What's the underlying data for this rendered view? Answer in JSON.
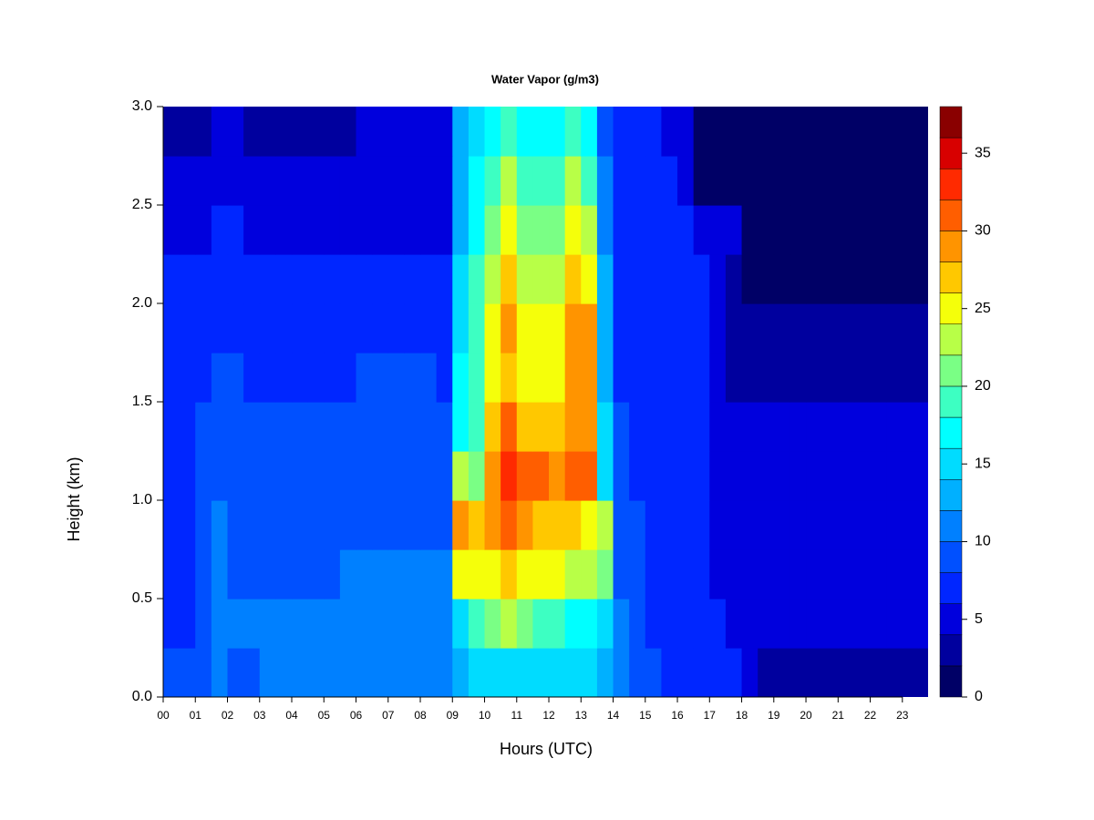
{
  "chart_data": {
    "type": "heatmap",
    "title": "Water Vapor (g/m3)",
    "x_label": "Hours (UTC)",
    "y_label": "Height (km)",
    "x": [
      0.25,
      0.75,
      1.25,
      1.75,
      2.25,
      2.75,
      3.25,
      3.75,
      4.25,
      4.75,
      5.25,
      5.75,
      6.25,
      6.75,
      7.25,
      7.75,
      8.25,
      8.75,
      9.25,
      9.75,
      10.25,
      10.75,
      11.25,
      11.75,
      12.25,
      12.75,
      13.25,
      13.75,
      14.25,
      14.75,
      15.25,
      15.75,
      16.25,
      16.75,
      17.25,
      17.75,
      18.25,
      18.75,
      19.25,
      19.75,
      20.25,
      20.75,
      21.25,
      21.75,
      22.25,
      22.75,
      23.25,
      23.75
    ],
    "y": [
      0.125,
      0.375,
      0.625,
      0.875,
      1.125,
      1.375,
      1.625,
      1.875,
      2.125,
      2.375,
      2.625,
      2.875
    ],
    "z": [
      [
        8,
        8,
        9,
        10,
        9,
        9,
        10,
        10,
        10,
        10,
        10,
        10,
        10,
        10,
        10,
        10,
        10,
        10,
        12,
        14,
        15,
        15,
        15,
        14,
        14,
        14,
        14,
        12,
        10,
        9,
        8,
        7,
        6,
        6,
        6,
        6,
        5,
        3,
        3,
        3,
        3,
        3,
        3,
        3,
        3,
        3,
        3,
        3
      ],
      [
        7,
        7,
        8,
        10,
        10,
        10,
        11,
        11,
        11,
        11,
        11,
        11,
        11,
        11,
        11,
        11,
        11,
        11,
        14,
        18,
        20,
        22,
        20,
        18,
        18,
        16,
        16,
        14,
        10,
        9,
        7,
        7,
        6,
        6,
        7,
        5,
        5,
        5,
        5,
        5,
        5,
        5,
        5,
        5,
        5,
        5,
        5,
        5
      ],
      [
        7,
        7,
        8,
        10,
        9,
        9,
        9,
        9,
        9,
        9,
        9,
        10,
        10,
        10,
        10,
        10,
        10,
        10,
        24,
        24,
        25,
        27,
        25,
        24,
        24,
        23,
        22,
        20,
        9,
        8,
        7,
        7,
        6,
        6,
        5,
        5,
        5,
        5,
        5,
        5,
        5,
        5,
        5,
        5,
        5,
        5,
        5,
        5
      ],
      [
        7,
        7,
        8,
        11,
        9,
        8,
        8,
        8,
        9,
        9,
        9,
        9,
        9,
        9,
        9,
        9,
        9,
        8,
        28,
        26,
        28,
        30,
        28,
        27,
        27,
        26,
        25,
        22,
        8,
        8,
        7,
        7,
        6,
        6,
        5,
        5,
        5,
        5,
        5,
        5,
        5,
        5,
        5,
        5,
        5,
        5,
        5,
        5
      ],
      [
        7,
        7,
        8,
        9,
        8,
        8,
        8,
        8,
        8,
        8,
        8,
        8,
        8,
        8,
        8,
        8,
        8,
        8,
        22,
        20,
        28,
        32,
        30,
        30,
        28,
        30,
        30,
        14,
        8,
        7,
        7,
        7,
        6,
        6,
        5,
        5,
        5,
        5,
        5,
        5,
        5,
        5,
        5,
        5,
        5,
        5,
        5,
        5
      ],
      [
        7,
        7,
        8,
        8,
        8,
        8,
        8,
        8,
        8,
        8,
        8,
        8,
        8,
        8,
        8,
        8,
        8,
        8,
        16,
        18,
        26,
        30,
        27,
        26,
        26,
        28,
        28,
        14,
        8,
        7,
        7,
        6,
        6,
        6,
        5,
        5,
        5,
        5,
        5,
        5,
        5,
        5,
        5,
        5,
        5,
        5,
        5,
        5
      ],
      [
        7,
        7,
        7,
        8,
        8,
        7,
        7,
        7,
        7,
        7,
        7,
        7,
        8,
        8,
        8,
        8,
        8,
        7,
        16,
        18,
        24,
        27,
        25,
        24,
        24,
        28,
        28,
        12,
        7,
        7,
        7,
        6,
        6,
        6,
        5,
        3,
        3,
        3,
        3,
        3,
        3,
        3,
        3,
        3,
        3,
        3,
        3,
        3
      ],
      [
        6,
        6,
        6,
        7,
        7,
        6,
        6,
        6,
        6,
        6,
        6,
        6,
        7,
        7,
        6,
        6,
        6,
        6,
        14,
        18,
        24,
        28,
        24,
        24,
        24,
        29,
        28,
        12,
        7,
        7,
        6,
        6,
        6,
        6,
        5,
        3,
        3,
        3,
        3,
        3,
        3,
        3,
        3,
        3,
        3,
        3,
        3,
        3
      ],
      [
        6,
        6,
        6,
        6,
        7,
        6,
        6,
        6,
        6,
        6,
        6,
        6,
        6,
        6,
        6,
        6,
        6,
        6,
        14,
        18,
        22,
        27,
        22,
        22,
        22,
        26,
        24,
        12,
        7,
        7,
        6,
        6,
        6,
        6,
        5,
        3,
        1.5,
        1.5,
        1.5,
        1.5,
        1.5,
        1.5,
        1.5,
        1.5,
        1.5,
        1.5,
        1.5,
        1.5
      ],
      [
        5,
        5,
        5,
        6,
        6,
        5,
        5,
        5,
        5,
        5,
        5,
        5,
        5,
        5,
        5,
        5,
        5,
        5,
        12,
        16,
        20,
        24,
        20,
        20,
        20,
        24,
        22,
        10,
        7,
        6,
        6,
        6,
        6,
        5,
        5,
        4,
        1.5,
        1.5,
        1.5,
        1.5,
        1.5,
        1.5,
        1.5,
        1.5,
        1.5,
        1.5,
        1.5,
        1.5
      ],
      [
        4,
        4,
        4,
        5,
        5,
        5,
        5,
        4,
        4,
        4,
        4,
        4,
        4,
        4,
        5,
        5,
        5,
        5,
        12,
        16,
        18,
        22,
        18,
        18,
        18,
        22,
        18,
        10,
        6,
        6,
        6,
        6,
        5,
        1.5,
        1.5,
        1.5,
        1.5,
        1.5,
        1.5,
        1.5,
        1.5,
        1.5,
        1.5,
        1.5,
        1.5,
        1.5,
        1.5,
        1.5
      ],
      [
        3,
        3,
        3,
        5,
        4,
        3,
        3,
        3,
        3,
        3,
        3,
        3,
        4,
        4,
        4,
        4,
        4,
        4,
        12,
        14,
        16,
        18,
        16,
        16,
        16,
        18,
        16,
        9,
        6,
        6,
        6,
        5,
        5,
        1.5,
        1.5,
        1.5,
        1.5,
        1.5,
        1.5,
        1.5,
        1.5,
        1.5,
        1.5,
        1.5,
        1.5,
        1.5,
        1.5,
        1.5
      ]
    ],
    "xlim": [
      0,
      23.8
    ],
    "ylim": [
      0,
      3
    ],
    "xticks": [
      {
        "value": 0,
        "label": "00"
      },
      {
        "value": 1,
        "label": "01"
      },
      {
        "value": 2,
        "label": "02"
      },
      {
        "value": 3,
        "label": "03"
      },
      {
        "value": 4,
        "label": "04"
      },
      {
        "value": 5,
        "label": "05"
      },
      {
        "value": 6,
        "label": "06"
      },
      {
        "value": 7,
        "label": "07"
      },
      {
        "value": 8,
        "label": "08"
      },
      {
        "value": 9,
        "label": "09"
      },
      {
        "value": 10,
        "label": "10"
      },
      {
        "value": 11,
        "label": "11"
      },
      {
        "value": 12,
        "label": "12"
      },
      {
        "value": 13,
        "label": "13"
      },
      {
        "value": 14,
        "label": "14"
      },
      {
        "value": 15,
        "label": "15"
      },
      {
        "value": 16,
        "label": "16"
      },
      {
        "value": 17,
        "label": "17"
      },
      {
        "value": 18,
        "label": "18"
      },
      {
        "value": 19,
        "label": "19"
      },
      {
        "value": 20,
        "label": "20"
      },
      {
        "value": 21,
        "label": "21"
      },
      {
        "value": 22,
        "label": "22"
      },
      {
        "value": 23,
        "label": "23"
      }
    ],
    "yticks": [
      {
        "value": 0,
        "label": "0.0"
      },
      0.5,
      {
        "value": 1,
        "label": "1.0"
      },
      1.5,
      {
        "value": 2,
        "label": "2.0"
      },
      2.5,
      {
        "value": 3,
        "label": "3.0"
      }
    ],
    "levels": [
      0,
      2,
      4,
      6,
      8,
      10,
      12,
      14,
      16,
      18,
      20,
      22,
      24,
      26,
      28,
      30,
      32,
      34,
      36,
      38
    ],
    "colors": [
      "#000066",
      "#00009e",
      "#0000dd",
      "#0026ff",
      "#0050ff",
      "#0080ff",
      "#00b0ff",
      "#00dcff",
      "#00ffff",
      "#3dffc2",
      "#7aff85",
      "#b8ff47",
      "#f5ff0a",
      "#ffc800",
      "#ff9400",
      "#ff5e00",
      "#ff2a00",
      "#d80000",
      "#8a0000"
    ],
    "clim": [
      0,
      38
    ],
    "cticks": [
      0,
      5,
      10,
      15,
      20,
      25,
      30,
      35
    ]
  }
}
